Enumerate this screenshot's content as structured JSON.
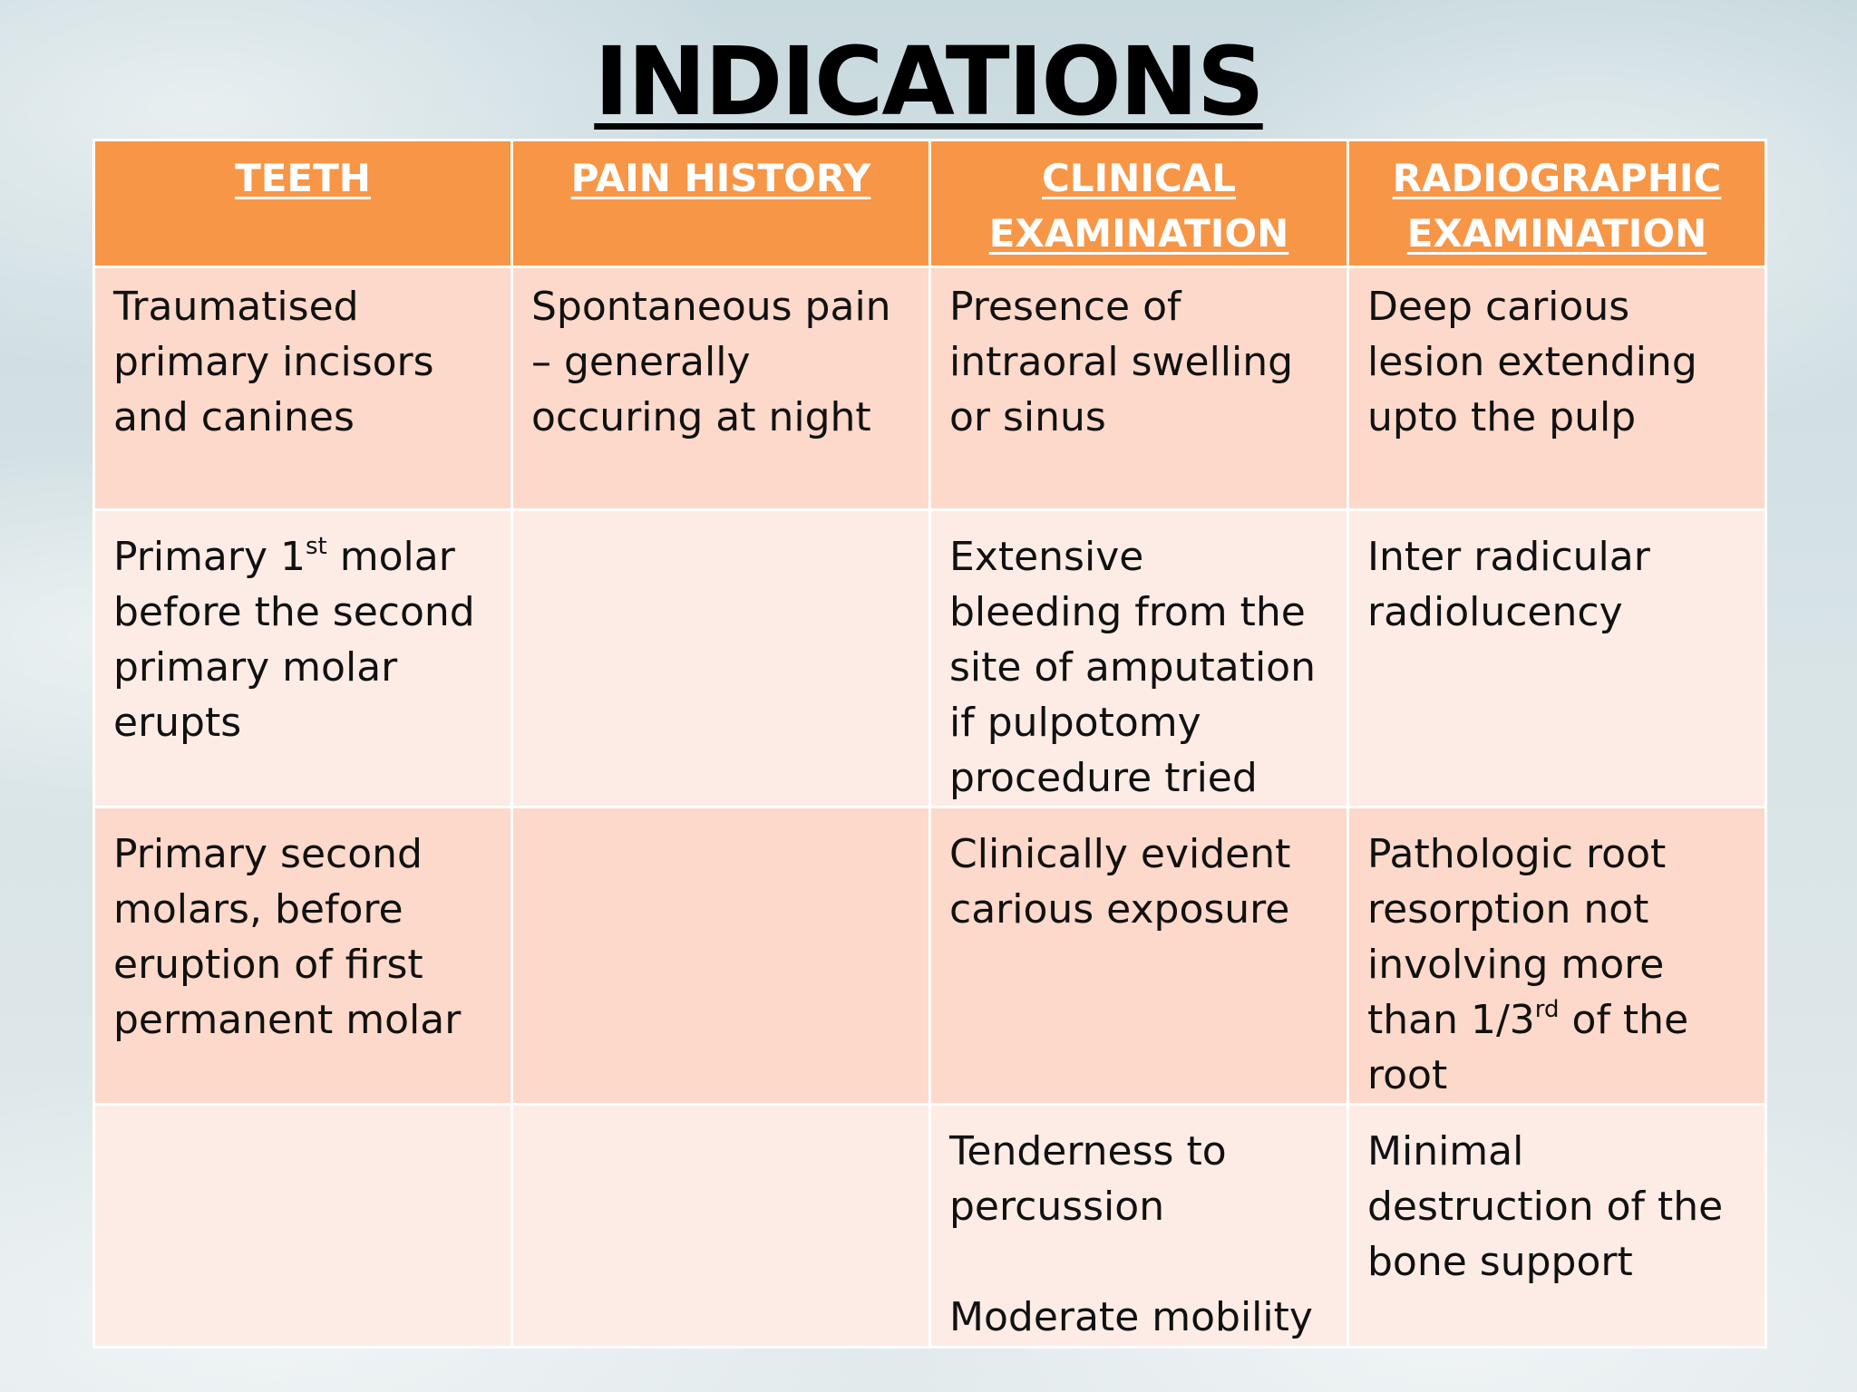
{
  "title": "INDICATIONS",
  "headers": {
    "teeth": "TEETH",
    "pain_history": "PAIN HISTORY",
    "clinical_line1": "CLINICAL",
    "clinical_line2": "EXAMINATION",
    "radiographic_line1": "RADIOGRAPHIC",
    "radiographic_line2": "EXAMINATION"
  },
  "rows": [
    {
      "teeth": "Traumatised primary incisors and canines",
      "pain": "Spontaneous pain – generally occuring at night",
      "clinical": "Presence of intraoral swelling or sinus",
      "radiographic": "Deep carious lesion extending upto the pulp"
    },
    {
      "teeth_before_sup": "Primary 1",
      "teeth_sup": "st",
      "teeth_after_sup": " molar before the second primary molar erupts",
      "pain": "",
      "clinical": "Extensive bleeding from the site of amputation if pulpotomy procedure tried",
      "radiographic": "Inter radicular radiolucency"
    },
    {
      "teeth": "Primary second molars, before eruption of first permanent molar",
      "pain": "",
      "clinical": "Clinically evident carious exposure",
      "radiographic_before_sup": "Pathologic root resorption not involving more than 1/3",
      "radiographic_sup": "rd",
      "radiographic_after_sup": " of the root"
    },
    {
      "teeth": "",
      "pain": "",
      "clinical_line1": "Tenderness to percussion",
      "clinical_line2": "Moderate mobility",
      "radiographic": "Minimal destruction of the bone support"
    }
  ]
}
